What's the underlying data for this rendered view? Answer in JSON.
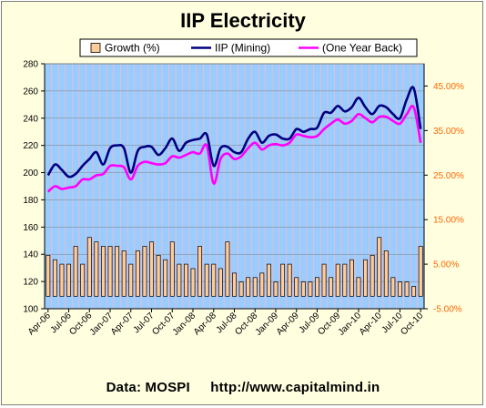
{
  "source": {
    "data_label": "Data: MOSPI",
    "url": "http://www.capitalmind.in"
  },
  "colors": {
    "plot_bg": "#99ccff",
    "grid": "#ffb6c1",
    "bar_fill": "#ffcc99",
    "mining": "#000080",
    "one_year_back": "#ff00ff",
    "right_axis": "#ff6600",
    "frame_bg": "#ffffe0"
  },
  "chart_data": {
    "type": "bar",
    "title": "IIP Electricity",
    "legend": [
      "Growth (%)",
      "IIP (Mining)",
      "(One Year Back)"
    ],
    "legend_position": "top",
    "grid": true,
    "ylim_left": [
      100,
      280
    ],
    "yticks_left": [
      100,
      120,
      140,
      160,
      180,
      200,
      220,
      240,
      260,
      280
    ],
    "ylim_right": [
      -5,
      50
    ],
    "yticks_right": [
      "-5.00%",
      "5.00%",
      "15.00%",
      "25.00%",
      "35.00%",
      "45.00%"
    ],
    "yticks_right_values": [
      -5,
      5,
      15,
      25,
      35,
      45
    ],
    "xtick_labels": [
      "Apr-06",
      "Jul-06",
      "Oct-06",
      "Jan-07",
      "Apr-07",
      "Jul-07",
      "Oct-07",
      "Jan-08",
      "Apr-08",
      "Jul-08",
      "Oct-08",
      "Jan-09",
      "Apr-09",
      "Jul-09",
      "Oct-09",
      "Jan-10",
      "Apr-10",
      "Jul-10",
      "Oct-10"
    ],
    "n_points": 55,
    "series": [
      {
        "name": "Growth (%)",
        "kind": "bar",
        "axis": "right",
        "values": [
          7,
          6,
          5,
          5,
          9,
          5,
          11,
          10,
          9,
          9,
          9,
          8,
          5,
          8,
          9,
          10,
          7,
          6,
          10,
          5,
          5,
          4,
          9,
          5,
          5,
          4,
          10,
          3,
          1,
          2,
          2,
          3,
          5,
          1,
          5,
          5,
          2,
          1,
          1,
          2,
          5,
          2,
          5,
          5,
          6,
          2,
          6,
          7,
          11,
          8,
          2,
          1,
          1,
          0,
          9
        ]
      },
      {
        "name": "IIP (Mining)",
        "kind": "line",
        "axis": "left",
        "values": [
          198,
          206,
          202,
          197,
          199,
          205,
          210,
          215,
          206,
          218,
          220,
          218,
          200,
          216,
          219,
          219,
          213,
          218,
          225,
          216,
          222,
          224,
          225,
          228,
          205,
          218,
          219,
          215,
          215,
          225,
          230,
          222,
          227,
          228,
          225,
          225,
          232,
          230,
          232,
          233,
          244,
          244,
          249,
          245,
          248,
          255,
          248,
          243,
          249,
          248,
          243,
          240,
          254,
          262,
          232
        ]
      },
      {
        "name": "(One Year Back)",
        "kind": "line",
        "axis": "left",
        "values": [
          186,
          190,
          188,
          189,
          190,
          195,
          195,
          198,
          199,
          205,
          205,
          204,
          195,
          205,
          208,
          207,
          206,
          207,
          212,
          211,
          213,
          215,
          214,
          220,
          192,
          210,
          214,
          210,
          212,
          218,
          222,
          217,
          220,
          221,
          220,
          222,
          228,
          227,
          226,
          227,
          232,
          236,
          239,
          236,
          238,
          243,
          240,
          237,
          241,
          241,
          238,
          236,
          243,
          248,
          222
        ]
      }
    ]
  }
}
